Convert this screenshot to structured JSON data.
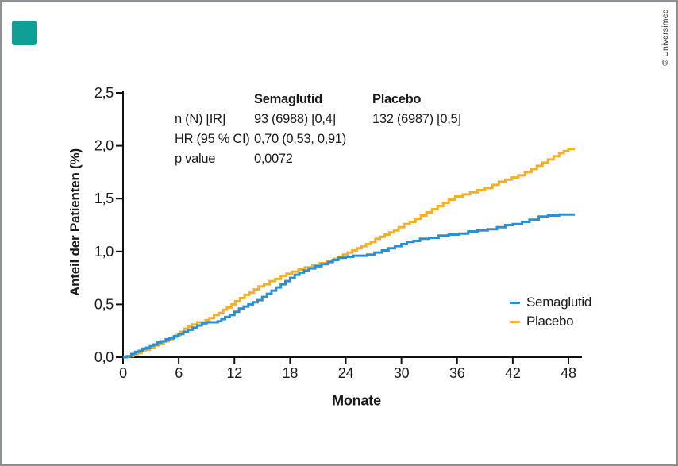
{
  "branding": {
    "logo_color": "#0f9f96",
    "copyright": "© Universimed"
  },
  "stats": {
    "header_semaglutid": "Semaglutid",
    "header_placebo": "Placebo",
    "rows": [
      {
        "label": "n (N) [IR]",
        "semaglutid": "93 (6988) [0,4]",
        "placebo": "132 (6987) [0,5]"
      },
      {
        "label": "HR (95 % CI)",
        "semaglutid": "0,70 (0,53, 0,91)",
        "placebo": ""
      },
      {
        "label": "p value",
        "semaglutid": "0,0072",
        "placebo": ""
      }
    ]
  },
  "legend": {
    "items": [
      {
        "label": "Semaglutid",
        "color": "#2e8fd0"
      },
      {
        "label": "Placebo",
        "color": "#f2b02a"
      }
    ]
  },
  "chart_data": {
    "type": "line",
    "step": true,
    "title": "",
    "xlabel": "Monate",
    "ylabel": "Anteil der Patienten (%)",
    "xlim": [
      0,
      49.5
    ],
    "ylim": [
      0,
      2.5
    ],
    "grid": false,
    "legend_position": "right-middle",
    "axis_color": "#111111",
    "text_color": "#1a1a1a",
    "x_ticks": [
      "0",
      "6",
      "12",
      "18",
      "24",
      "30",
      "36",
      "42",
      "48"
    ],
    "x_tick_values": [
      0,
      6,
      12,
      18,
      24,
      30,
      36,
      42,
      48
    ],
    "y_ticks": [
      "0,0",
      "0,5",
      "1,0",
      "1,5",
      "2,0",
      "2,5"
    ],
    "y_tick_values": [
      0,
      0.5,
      1.0,
      1.5,
      2.0,
      2.5
    ],
    "series": [
      {
        "name": "Placebo",
        "color": "#f2b02a",
        "points": [
          [
            0,
            0
          ],
          [
            0.6,
            0.01
          ],
          [
            1.1,
            0.03
          ],
          [
            1.6,
            0.04
          ],
          [
            2,
            0.06
          ],
          [
            2.4,
            0.07
          ],
          [
            2.9,
            0.09
          ],
          [
            3.4,
            0.11
          ],
          [
            3.9,
            0.13
          ],
          [
            4.4,
            0.15
          ],
          [
            4.9,
            0.17
          ],
          [
            5.4,
            0.19
          ],
          [
            5.8,
            0.21
          ],
          [
            6.2,
            0.24
          ],
          [
            6.6,
            0.27
          ],
          [
            7,
            0.29
          ],
          [
            7.4,
            0.31
          ],
          [
            8,
            0.33
          ],
          [
            8.9,
            0.35
          ],
          [
            9.3,
            0.37
          ],
          [
            9.8,
            0.4
          ],
          [
            10.3,
            0.42
          ],
          [
            10.8,
            0.45
          ],
          [
            11.2,
            0.47
          ],
          [
            11.7,
            0.5
          ],
          [
            12.1,
            0.53
          ],
          [
            12.6,
            0.56
          ],
          [
            13.1,
            0.59
          ],
          [
            13.6,
            0.61
          ],
          [
            14.1,
            0.64
          ],
          [
            14.6,
            0.67
          ],
          [
            15.2,
            0.69
          ],
          [
            15.8,
            0.72
          ],
          [
            16.4,
            0.74
          ],
          [
            17,
            0.77
          ],
          [
            17.6,
            0.79
          ],
          [
            18.2,
            0.81
          ],
          [
            18.9,
            0.83
          ],
          [
            19.6,
            0.85
          ],
          [
            20.4,
            0.87
          ],
          [
            21.2,
            0.89
          ],
          [
            22,
            0.91
          ],
          [
            22.7,
            0.93
          ],
          [
            23.2,
            0.95
          ],
          [
            23.7,
            0.97
          ],
          [
            24.2,
            0.99
          ],
          [
            24.7,
            1.01
          ],
          [
            25.2,
            1.03
          ],
          [
            25.7,
            1.05
          ],
          [
            26.2,
            1.07
          ],
          [
            26.7,
            1.09
          ],
          [
            27.2,
            1.12
          ],
          [
            27.7,
            1.14
          ],
          [
            28.2,
            1.16
          ],
          [
            28.7,
            1.18
          ],
          [
            29.2,
            1.2
          ],
          [
            29.7,
            1.23
          ],
          [
            30.3,
            1.26
          ],
          [
            30.9,
            1.28
          ],
          [
            31.5,
            1.31
          ],
          [
            32.1,
            1.34
          ],
          [
            32.7,
            1.37
          ],
          [
            33.3,
            1.4
          ],
          [
            33.9,
            1.43
          ],
          [
            34.5,
            1.46
          ],
          [
            35.1,
            1.49
          ],
          [
            35.8,
            1.52
          ],
          [
            36.6,
            1.54
          ],
          [
            37.4,
            1.56
          ],
          [
            38.2,
            1.58
          ],
          [
            39,
            1.6
          ],
          [
            39.8,
            1.63
          ],
          [
            40.5,
            1.66
          ],
          [
            41.2,
            1.68
          ],
          [
            41.9,
            1.7
          ],
          [
            42.6,
            1.72
          ],
          [
            43.3,
            1.75
          ],
          [
            44,
            1.78
          ],
          [
            44.6,
            1.81
          ],
          [
            45.2,
            1.84
          ],
          [
            45.8,
            1.87
          ],
          [
            46.4,
            1.9
          ],
          [
            47,
            1.93
          ],
          [
            47.5,
            1.95
          ],
          [
            48,
            1.97
          ],
          [
            48.7,
            1.97
          ]
        ]
      },
      {
        "name": "Semaglutid",
        "color": "#2e8fd0",
        "points": [
          [
            0,
            0
          ],
          [
            0.4,
            0.01
          ],
          [
            0.9,
            0.03
          ],
          [
            1.3,
            0.05
          ],
          [
            1.7,
            0.06
          ],
          [
            2.1,
            0.08
          ],
          [
            2.5,
            0.09
          ],
          [
            2.9,
            0.11
          ],
          [
            3.3,
            0.12
          ],
          [
            3.7,
            0.14
          ],
          [
            4.1,
            0.15
          ],
          [
            4.6,
            0.17
          ],
          [
            5,
            0.18
          ],
          [
            5.5,
            0.2
          ],
          [
            6,
            0.22
          ],
          [
            6.5,
            0.24
          ],
          [
            7,
            0.26
          ],
          [
            7.5,
            0.28
          ],
          [
            8,
            0.3
          ],
          [
            8.5,
            0.32
          ],
          [
            9,
            0.33
          ],
          [
            10.2,
            0.34
          ],
          [
            10.6,
            0.36
          ],
          [
            11,
            0.38
          ],
          [
            11.5,
            0.4
          ],
          [
            12,
            0.43
          ],
          [
            12.5,
            0.46
          ],
          [
            13,
            0.48
          ],
          [
            13.5,
            0.5
          ],
          [
            14,
            0.52
          ],
          [
            14.5,
            0.54
          ],
          [
            15,
            0.57
          ],
          [
            15.5,
            0.6
          ],
          [
            16,
            0.63
          ],
          [
            16.5,
            0.66
          ],
          [
            17,
            0.69
          ],
          [
            17.5,
            0.72
          ],
          [
            18,
            0.75
          ],
          [
            18.5,
            0.78
          ],
          [
            19,
            0.8
          ],
          [
            19.5,
            0.82
          ],
          [
            20,
            0.84
          ],
          [
            20.7,
            0.86
          ],
          [
            21.4,
            0.88
          ],
          [
            22.1,
            0.9
          ],
          [
            22.6,
            0.92
          ],
          [
            23.2,
            0.94
          ],
          [
            24,
            0.95
          ],
          [
            24.8,
            0.96
          ],
          [
            26.3,
            0.97
          ],
          [
            27.1,
            0.99
          ],
          [
            27.9,
            1.01
          ],
          [
            28.6,
            1.03
          ],
          [
            29.3,
            1.05
          ],
          [
            30,
            1.07
          ],
          [
            30.6,
            1.09
          ],
          [
            31.3,
            1.1
          ],
          [
            32,
            1.12
          ],
          [
            33,
            1.13
          ],
          [
            34,
            1.15
          ],
          [
            35.1,
            1.16
          ],
          [
            36.2,
            1.17
          ],
          [
            37.2,
            1.19
          ],
          [
            38.2,
            1.2
          ],
          [
            39.3,
            1.21
          ],
          [
            40.3,
            1.23
          ],
          [
            41.2,
            1.25
          ],
          [
            42,
            1.26
          ],
          [
            43,
            1.28
          ],
          [
            43.8,
            1.3
          ],
          [
            44.8,
            1.33
          ],
          [
            45.8,
            1.34
          ],
          [
            47,
            1.35
          ],
          [
            48.7,
            1.35
          ]
        ]
      }
    ]
  }
}
